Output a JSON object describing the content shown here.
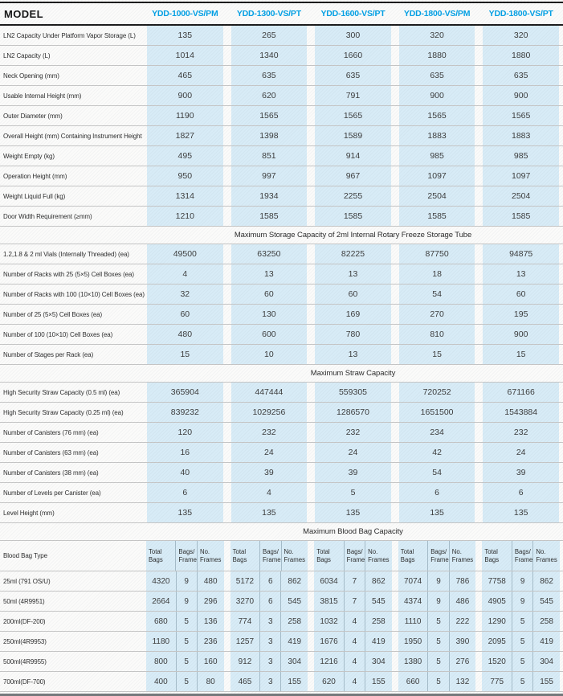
{
  "colors": {
    "accent_blue": "#00a0e5",
    "cell_blue": "#d8ecf7",
    "line_gray": "#c6c6c6",
    "header_black": "#1b1b1b"
  },
  "table": {
    "model_label": "MODEL",
    "models": [
      "YDD-1000-VS/PM",
      "YDD-1300-VS/PT",
      "YDD-1600-VS/PT",
      "YDD-1800-VS/PM",
      "YDD-1800-VS/PT"
    ],
    "spec_rows": [
      {
        "label": "LN2 Capacity Under Platform Vapor Storage (L)",
        "values": [
          135,
          265,
          300,
          320,
          320
        ]
      },
      {
        "label": "LN2 Capacity (L)",
        "values": [
          1014,
          1340,
          1660,
          1880,
          1880
        ]
      },
      {
        "label": "Neck Opening (mm)",
        "values": [
          465,
          635,
          635,
          635,
          635
        ]
      },
      {
        "label": "Usable Internal Height (mm)",
        "values": [
          900,
          620,
          791,
          900,
          900
        ]
      },
      {
        "label": "Outer Diameter (mm)",
        "values": [
          1190,
          1565,
          1565,
          1565,
          1565
        ]
      },
      {
        "label": "Overall Height (mm) Containing Instrument Height",
        "values": [
          1827,
          1398,
          1589,
          1883,
          1883
        ]
      },
      {
        "label": "Weight Empty (kg)",
        "values": [
          495,
          851,
          914,
          985,
          985
        ]
      },
      {
        "label": "Operation Height (mm)",
        "values": [
          950,
          997,
          967,
          1097,
          1097
        ]
      },
      {
        "label": "Weight Liquid Full (kg)",
        "values": [
          1314,
          1934,
          2255,
          2504,
          2504
        ]
      },
      {
        "label": "Door Width Requirement (≥mm)",
        "values": [
          1210,
          1585,
          1585,
          1585,
          1585
        ]
      }
    ],
    "tube": {
      "title": "Maximum Storage Capacity of 2ml Internal Rotary Freeze Storage Tube",
      "rows": [
        {
          "label": "1.2,1.8 & 2 ml Vials (Internally Threaded) (ea)",
          "values": [
            49500,
            63250,
            82225,
            87750,
            94875
          ]
        },
        {
          "label": "Number of Racks with 25 (5×5) Cell Boxes (ea)",
          "values": [
            4,
            13,
            13,
            18,
            13
          ]
        },
        {
          "label": "Number of Racks with 100 (10×10) Cell Boxes (ea)",
          "values": [
            32,
            60,
            60,
            54,
            60
          ]
        },
        {
          "label": "Number of 25 (5×5) Cell Boxes (ea)",
          "values": [
            60,
            130,
            169,
            270,
            195
          ]
        },
        {
          "label": "Number of 100 (10×10) Cell Boxes (ea)",
          "values": [
            480,
            600,
            780,
            810,
            900
          ]
        },
        {
          "label": "Number of Stages per Rack (ea)",
          "values": [
            15,
            10,
            13,
            15,
            15
          ]
        }
      ]
    },
    "straw": {
      "title": "Maximum Straw Capacity",
      "rows": [
        {
          "label": "High Security Straw Capacity (0.5 ml) (ea)",
          "values": [
            365904,
            447444,
            559305,
            720252,
            671166
          ]
        },
        {
          "label": "High Security Straw Capacity (0.25 ml) (ea)",
          "values": [
            839232,
            1029256,
            1286570,
            1651500,
            1543884
          ]
        },
        {
          "label": "Number of Canisters (76 mm) (ea)",
          "values": [
            120,
            232,
            232,
            234,
            232
          ]
        },
        {
          "label": "Number of Canisters (63 mm) (ea)",
          "values": [
            16,
            24,
            24,
            42,
            24
          ]
        },
        {
          "label": "Number of Canisters (38 mm) (ea)",
          "values": [
            40,
            39,
            39,
            54,
            39
          ]
        },
        {
          "label": "Number of Levels per Canister (ea)",
          "values": [
            6,
            4,
            5,
            6,
            6
          ]
        },
        {
          "label": "Level Height (mm)",
          "values": [
            135,
            135,
            135,
            135,
            135
          ]
        }
      ]
    },
    "blood": {
      "title": "Maximum Blood Bag Capacity",
      "type_label": "Blood Bag Type",
      "sub_headers": [
        "Total\nBags",
        "Bags/\nFrame",
        "No.\nFrames"
      ],
      "rows": [
        {
          "label": "25ml  (791 OS/U)",
          "groups": [
            {
              "total": 4320,
              "per_frame": 9,
              "frames": 480
            },
            {
              "total": 5172,
              "per_frame": 6,
              "frames": 862
            },
            {
              "total": 6034,
              "per_frame": 7,
              "frames": 862
            },
            {
              "total": 7074,
              "per_frame": 9,
              "frames": 786
            },
            {
              "total": 7758,
              "per_frame": 9,
              "frames": 862
            }
          ]
        },
        {
          "label": "50ml  (4R9951)",
          "groups": [
            {
              "total": 2664,
              "per_frame": 9,
              "frames": 296
            },
            {
              "total": 3270,
              "per_frame": 6,
              "frames": 545
            },
            {
              "total": 3815,
              "per_frame": 7,
              "frames": 545
            },
            {
              "total": 4374,
              "per_frame": 9,
              "frames": 486
            },
            {
              "total": 4905,
              "per_frame": 9,
              "frames": 545
            }
          ]
        },
        {
          "label": "200ml(DF-200)",
          "groups": [
            {
              "total": 680,
              "per_frame": 5,
              "frames": 136
            },
            {
              "total": 774,
              "per_frame": 3,
              "frames": 258
            },
            {
              "total": 1032,
              "per_frame": 4,
              "frames": 258
            },
            {
              "total": 1110,
              "per_frame": 5,
              "frames": 222
            },
            {
              "total": 1290,
              "per_frame": 5,
              "frames": 258
            }
          ]
        },
        {
          "label": "250ml(4R9953)",
          "groups": [
            {
              "total": 1180,
              "per_frame": 5,
              "frames": 236
            },
            {
              "total": 1257,
              "per_frame": 3,
              "frames": 419
            },
            {
              "total": 1676,
              "per_frame": 4,
              "frames": 419
            },
            {
              "total": 1950,
              "per_frame": 5,
              "frames": 390
            },
            {
              "total": 2095,
              "per_frame": 5,
              "frames": 419
            }
          ]
        },
        {
          "label": "500ml(4R9955)",
          "groups": [
            {
              "total": 800,
              "per_frame": 5,
              "frames": 160
            },
            {
              "total": 912,
              "per_frame": 3,
              "frames": 304
            },
            {
              "total": 1216,
              "per_frame": 4,
              "frames": 304
            },
            {
              "total": 1380,
              "per_frame": 5,
              "frames": 276
            },
            {
              "total": 1520,
              "per_frame": 5,
              "frames": 304
            }
          ]
        },
        {
          "label": "700ml(DF-700)",
          "groups": [
            {
              "total": 400,
              "per_frame": 5,
              "frames": 80
            },
            {
              "total": 465,
              "per_frame": 3,
              "frames": 155
            },
            {
              "total": 620,
              "per_frame": 4,
              "frames": 155
            },
            {
              "total": 660,
              "per_frame": 5,
              "frames": 132
            },
            {
              "total": 775,
              "per_frame": 5,
              "frames": 155
            }
          ]
        }
      ]
    }
  }
}
